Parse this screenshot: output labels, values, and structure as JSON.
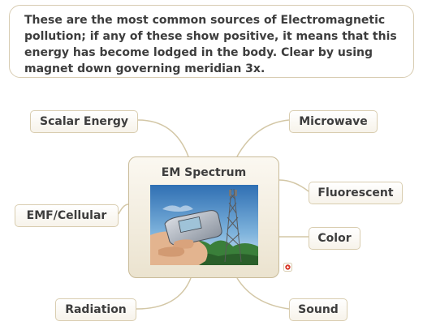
{
  "note": {
    "text": "These are the most common sources of Electromagnetic pollution; if any of these show positive, it means that this energy has become lodged in the body. Clear by using magnet down governing meridian 3x."
  },
  "center": {
    "title": "EM Spectrum",
    "image_icon": "cellphone-tower-photo"
  },
  "branches": {
    "scalar_energy": "Scalar Energy",
    "microwave": "Microwave",
    "fluorescent": "Fluorescent",
    "emf_cellular": "EMF/Cellular",
    "color": "Color",
    "radiation": "Radiation",
    "sound": "Sound"
  },
  "icons": {
    "attachment": "attachment-icon"
  },
  "colors": {
    "connector": "#d3c7a6",
    "node_border": "#d9cdb0"
  }
}
